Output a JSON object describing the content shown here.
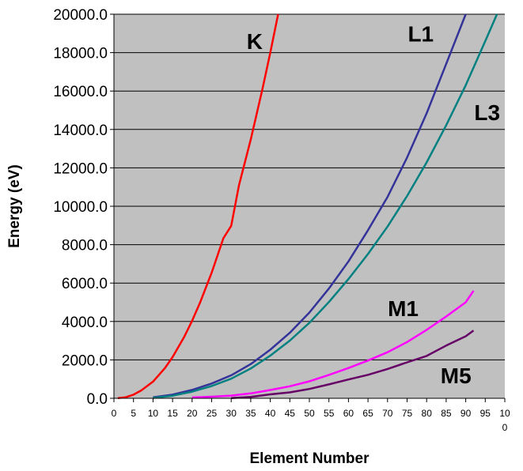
{
  "chart_data": {
    "type": "line",
    "title": "",
    "xlabel": "Element Number",
    "ylabel": "Energy (eV)",
    "xlim": [
      0,
      100
    ],
    "ylim": [
      0,
      20000
    ],
    "x_ticks": [
      "0",
      "5",
      "10",
      "15",
      "20",
      "25",
      "30",
      "35",
      "40",
      "45",
      "50",
      "55",
      "60",
      "65",
      "70",
      "75",
      "80",
      "85",
      "90",
      "95",
      "10\n0"
    ],
    "y_ticks": [
      "0.0",
      "2000.0",
      "4000.0",
      "6000.0",
      "8000.0",
      "10000.0",
      "12000.0",
      "14000.0",
      "16000.0",
      "18000.0",
      "20000.0"
    ],
    "grid": "horizontal",
    "plot_background": "#c0c0c0",
    "legend": "inline labels",
    "series": [
      {
        "name": "K",
        "color": "#ff0000",
        "points": [
          [
            1,
            14
          ],
          [
            3,
            55
          ],
          [
            5,
            188
          ],
          [
            7,
            410
          ],
          [
            10,
            870
          ],
          [
            13,
            1560
          ],
          [
            15,
            2145
          ],
          [
            18,
            3206
          ],
          [
            20,
            4038
          ],
          [
            22,
            4966
          ],
          [
            25,
            6539
          ],
          [
            28,
            8333
          ],
          [
            30,
            8979
          ],
          [
            32,
            11103
          ],
          [
            35,
            13474
          ],
          [
            38,
            16105
          ],
          [
            40,
            17998
          ],
          [
            42,
            20000
          ]
        ]
      },
      {
        "name": "L1",
        "color": "#333399",
        "points": [
          [
            10,
            48
          ],
          [
            15,
            189
          ],
          [
            20,
            438
          ],
          [
            25,
            769
          ],
          [
            30,
            1196
          ],
          [
            35,
            1782
          ],
          [
            40,
            2532
          ],
          [
            45,
            3412
          ],
          [
            50,
            4465
          ],
          [
            55,
            5714
          ],
          [
            60,
            7126
          ],
          [
            65,
            8752
          ],
          [
            70,
            10486
          ],
          [
            75,
            12540
          ],
          [
            80,
            14840
          ],
          [
            85,
            17410
          ],
          [
            90,
            20000
          ]
        ]
      },
      {
        "name": "L3",
        "color": "#008080",
        "points": [
          [
            10,
            22
          ],
          [
            15,
            136
          ],
          [
            20,
            346
          ],
          [
            25,
            638
          ],
          [
            30,
            1021
          ],
          [
            35,
            1550
          ],
          [
            40,
            2223
          ],
          [
            45,
            3004
          ],
          [
            50,
            3929
          ],
          [
            55,
            5012
          ],
          [
            60,
            6208
          ],
          [
            65,
            7514
          ],
          [
            70,
            8944
          ],
          [
            75,
            10535
          ],
          [
            80,
            12284
          ],
          [
            85,
            14214
          ],
          [
            90,
            16300
          ],
          [
            95,
            18600
          ],
          [
            98,
            20000
          ]
        ]
      },
      {
        "name": "M1",
        "color": "#ff00ff",
        "points": [
          [
            20,
            44
          ],
          [
            25,
            84
          ],
          [
            30,
            140
          ],
          [
            35,
            257
          ],
          [
            40,
            431
          ],
          [
            45,
            627
          ],
          [
            50,
            884
          ],
          [
            55,
            1217
          ],
          [
            60,
            1575
          ],
          [
            65,
            1968
          ],
          [
            70,
            2398
          ],
          [
            75,
            2932
          ],
          [
            80,
            3562
          ],
          [
            85,
            4260
          ],
          [
            90,
            5000
          ],
          [
            92,
            5600
          ]
        ]
      },
      {
        "name": "M5",
        "color": "#660066",
        "points": [
          [
            30,
            10
          ],
          [
            35,
            70
          ],
          [
            40,
            207
          ],
          [
            45,
            307
          ],
          [
            50,
            485
          ],
          [
            55,
            726
          ],
          [
            60,
            978
          ],
          [
            65,
            1222
          ],
          [
            70,
            1528
          ],
          [
            75,
            1872
          ],
          [
            80,
            2206
          ],
          [
            85,
            2743
          ],
          [
            90,
            3230
          ],
          [
            92,
            3530
          ]
        ]
      }
    ],
    "labels": [
      {
        "text": "K",
        "x": 36,
        "y": 18600
      },
      {
        "text": "L1",
        "x": 78.5,
        "y": 19000
      },
      {
        "text": "L3",
        "x": 95.5,
        "y": 14900
      },
      {
        "text": "M1",
        "x": 74,
        "y": 4700
      },
      {
        "text": "M5",
        "x": 87.5,
        "y": 1200
      }
    ]
  }
}
